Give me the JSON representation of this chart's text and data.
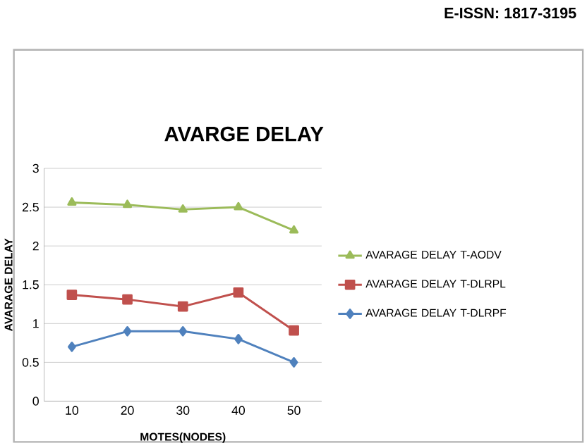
{
  "chart_data": {
    "type": "line",
    "title": "AVARGE DELAY",
    "xlabel": "MOTES(NODES)",
    "ylabel": "AVARAGE DELAY",
    "annotations": [
      "E-ISSN: 1817-3195"
    ],
    "categories": [
      "10",
      "20",
      "30",
      "40",
      "50"
    ],
    "ylim": [
      0,
      3
    ],
    "yticks": [
      0,
      0.5,
      1,
      1.5,
      2,
      2.5,
      3
    ],
    "grid": "y",
    "legend": "right",
    "series": [
      {
        "name": "AVARAGE DELAY T-AODV",
        "color": "#9bbb59",
        "marker": "triangle",
        "values": [
          2.56,
          2.53,
          2.47,
          2.5,
          2.2
        ]
      },
      {
        "name": "AVARAGE DELAY T-DLRPL",
        "color": "#c0504d",
        "marker": "square",
        "values": [
          1.37,
          1.31,
          1.22,
          1.4,
          0.91
        ]
      },
      {
        "name": "AVARAGE DELAY T-DLRPF",
        "color": "#4f81bd",
        "marker": "diamond",
        "values": [
          0.7,
          0.9,
          0.9,
          0.8,
          0.5
        ]
      }
    ]
  }
}
